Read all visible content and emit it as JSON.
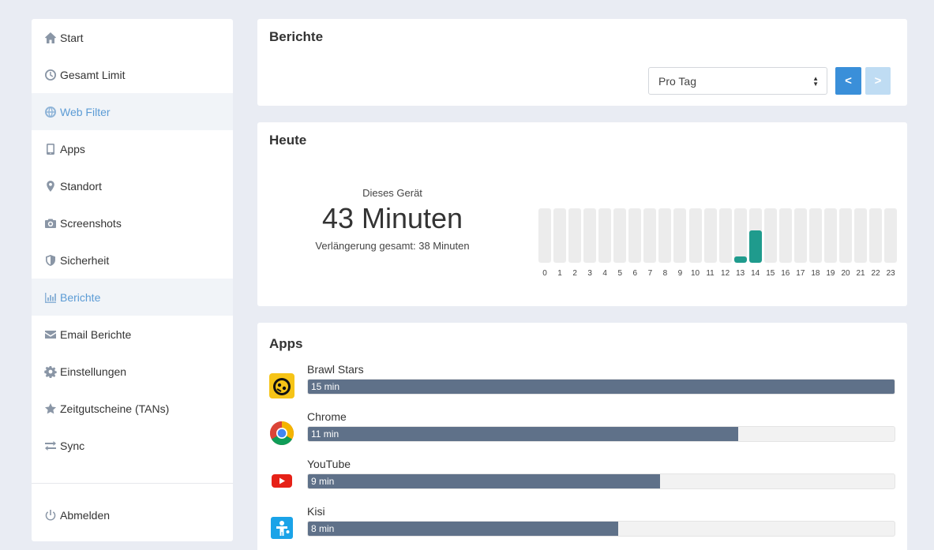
{
  "sidebar": {
    "items": [
      {
        "label": "Start",
        "icon": "home-icon",
        "active": false
      },
      {
        "label": "Gesamt Limit",
        "icon": "clock-icon",
        "active": false
      },
      {
        "label": "Web Filter",
        "icon": "globe-icon",
        "active": true
      },
      {
        "label": "Apps",
        "icon": "phone-icon",
        "active": false
      },
      {
        "label": "Standort",
        "icon": "map-marker-icon",
        "active": false
      },
      {
        "label": "Screenshots",
        "icon": "camera-icon",
        "active": false
      },
      {
        "label": "Sicherheit",
        "icon": "shield-icon",
        "active": false
      },
      {
        "label": "Berichte",
        "icon": "bar-chart-icon",
        "active": true
      },
      {
        "label": "Email Berichte",
        "icon": "envelope-icon",
        "active": false
      },
      {
        "label": "Einstellungen",
        "icon": "gear-icon",
        "active": false
      },
      {
        "label": "Zeitgutscheine (TANs)",
        "icon": "star-icon",
        "active": false
      },
      {
        "label": "Sync",
        "icon": "sync-arrows-icon",
        "active": false
      }
    ],
    "logout": {
      "label": "Abmelden",
      "icon": "power-icon"
    }
  },
  "reports": {
    "title": "Berichte",
    "period_select": "Pro Tag",
    "prev_label": "<",
    "next_label": ">"
  },
  "today": {
    "title": "Heute",
    "device_label": "Dieses Gerät",
    "total": "43 Minuten",
    "extension": "Verlängerung gesamt: 38 Minuten",
    "accent_color": "#1f9b8d"
  },
  "chart_data": {
    "type": "bar",
    "categories": [
      "0",
      "1",
      "2",
      "3",
      "4",
      "5",
      "6",
      "7",
      "8",
      "9",
      "10",
      "11",
      "12",
      "13",
      "14",
      "15",
      "16",
      "17",
      "18",
      "19",
      "20",
      "21",
      "22",
      "23"
    ],
    "values": [
      0,
      0,
      0,
      0,
      0,
      0,
      0,
      0,
      0,
      0,
      0,
      0,
      0,
      0.12,
      0.6,
      0,
      0,
      0,
      0,
      0,
      0,
      0,
      0,
      0
    ],
    "ylim": [
      0,
      1
    ]
  },
  "apps": {
    "title": "Apps",
    "bar_color": "#5f7189",
    "items": [
      {
        "name": "Brawl Stars",
        "time": "15 min",
        "fraction": 1.0,
        "icon": "brawl-stars-icon"
      },
      {
        "name": "Chrome",
        "time": "11 min",
        "fraction": 0.733,
        "icon": "chrome-icon"
      },
      {
        "name": "YouTube",
        "time": "9 min",
        "fraction": 0.6,
        "icon": "youtube-icon"
      },
      {
        "name": "Kisi",
        "time": "8 min",
        "fraction": 0.529,
        "icon": "kisi-icon"
      }
    ]
  }
}
